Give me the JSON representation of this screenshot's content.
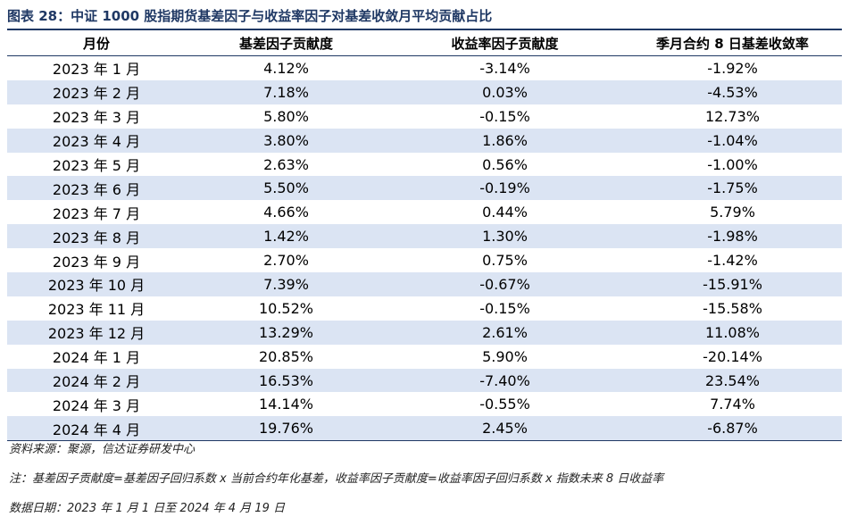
{
  "title": "图表 28：中证 1000 股指期货基差因子与收益率因子对基差收敛月平均贡献占比",
  "table": {
    "headers": [
      "月份",
      "基差因子贡献度",
      "收益率因子贡献度",
      "季月合约 8 日基差收敛率"
    ],
    "rows": [
      [
        "2023 年 1 月",
        "4.12%",
        "-3.14%",
        "-1.92%"
      ],
      [
        "2023 年 2 月",
        "7.18%",
        "0.03%",
        "-4.53%"
      ],
      [
        "2023 年 3 月",
        "5.80%",
        "-0.15%",
        "12.73%"
      ],
      [
        "2023 年 4 月",
        "3.80%",
        "1.86%",
        "-1.04%"
      ],
      [
        "2023 年 5 月",
        "2.63%",
        "0.56%",
        "-1.00%"
      ],
      [
        "2023 年 6 月",
        "5.50%",
        "-0.19%",
        "-1.75%"
      ],
      [
        "2023 年 7 月",
        "4.66%",
        "0.44%",
        "5.79%"
      ],
      [
        "2023 年 8 月",
        "1.42%",
        "1.30%",
        "-1.98%"
      ],
      [
        "2023 年 9 月",
        "2.70%",
        "0.75%",
        "-1.42%"
      ],
      [
        "2023 年 10 月",
        "7.39%",
        "-0.67%",
        "-15.91%"
      ],
      [
        "2023 年 11 月",
        "10.52%",
        "-0.15%",
        "-15.58%"
      ],
      [
        "2023 年 12 月",
        "13.29%",
        "2.61%",
        "11.08%"
      ],
      [
        "2024 年 1 月",
        "20.85%",
        "5.90%",
        "-20.14%"
      ],
      [
        "2024 年 2 月",
        "16.53%",
        "-7.40%",
        "23.54%"
      ],
      [
        "2024 年 3 月",
        "14.14%",
        "-0.55%",
        "7.74%"
      ],
      [
        "2024 年 4 月",
        "19.76%",
        "2.45%",
        "-6.87%"
      ]
    ]
  },
  "source": "资料来源：聚源，信达证券研发中心",
  "note": "注：基差因子贡献度=基差因子回归系数 x 当前合约年化基差，收益率因子贡献度=收益率因子回归系数 x 指数未来 8 日收益率",
  "data_date": "数据日期：2023 年 1 月 1 日至 2024 年 4 月 19 日",
  "colors": {
    "title": "#1f3864",
    "stripe": "#dbe4f3",
    "rule": "#1f3864"
  }
}
